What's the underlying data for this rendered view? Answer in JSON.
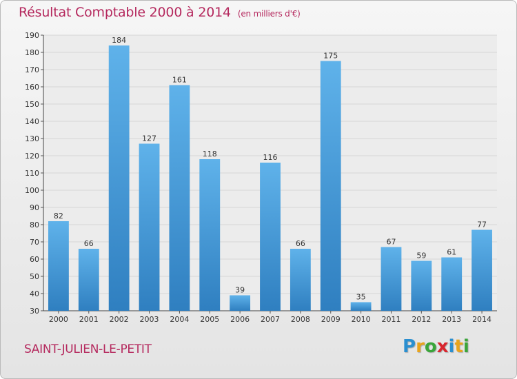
{
  "header": {
    "title": "Résultat Comptable 2000 à 2014",
    "unit": "(en milliers d'€)"
  },
  "footer": {
    "town": "SAINT-JULIEN-LE-PETIT",
    "logo": [
      {
        "ch": "P",
        "color": "#2a8fd0"
      },
      {
        "ch": "r",
        "color": "#e8a41c"
      },
      {
        "ch": "o",
        "color": "#3aa53a"
      },
      {
        "ch": "x",
        "color": "#d8262e"
      },
      {
        "ch": "i",
        "color": "#2a8fd0"
      },
      {
        "ch": "t",
        "color": "#e8a41c"
      },
      {
        "ch": "i",
        "color": "#3aa53a"
      }
    ]
  },
  "colors": {
    "title": "#b5295e",
    "bar_top": "#5fb2ea",
    "bar_bottom": "#2f7fc0"
  },
  "chart_data": {
    "type": "bar",
    "title": "",
    "xlabel": "",
    "ylabel": "",
    "categories": [
      "2000",
      "2001",
      "2002",
      "2003",
      "2004",
      "2005",
      "2006",
      "2007",
      "2008",
      "2009",
      "2010",
      "2011",
      "2012",
      "2013",
      "2014"
    ],
    "values": [
      82,
      66,
      184,
      127,
      161,
      118,
      39,
      116,
      66,
      175,
      35,
      67,
      59,
      61,
      77
    ],
    "ylim": [
      30,
      190
    ],
    "yticks": [
      30,
      40,
      50,
      60,
      70,
      80,
      90,
      100,
      110,
      120,
      130,
      140,
      150,
      160,
      170,
      180,
      190
    ],
    "grid": true,
    "data_labels": true
  }
}
